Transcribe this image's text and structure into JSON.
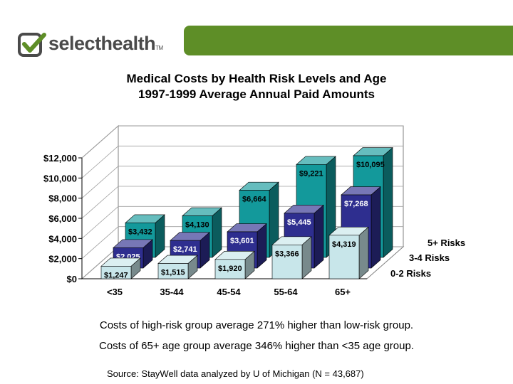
{
  "header": {
    "brand": "selecthealth",
    "trademark": "TM",
    "accent_color": "#5e8e27",
    "logo_color": "#4a4a4a"
  },
  "chart_data": {
    "type": "bar",
    "title": "Medical Costs by Health Risk Levels and Age",
    "subtitle": "1997-1999 Average Annual Paid Amounts",
    "categories": [
      "<35",
      "35-44",
      "45-54",
      "55-64",
      "65+"
    ],
    "series": [
      {
        "name": "0-2 Risks",
        "values": [
          1247,
          1515,
          1920,
          3366,
          4319
        ],
        "labels": [
          "$1,247",
          "$1,515",
          "$1,920",
          "$3,366",
          "$4,319"
        ],
        "color": "#c8e6ea"
      },
      {
        "name": "3-4 Risks",
        "values": [
          2025,
          2741,
          3601,
          5445,
          7268
        ],
        "labels": [
          "$2,025",
          "$2,741",
          "$3,601",
          "$5,445",
          "$7,268"
        ],
        "color": "#2e2e8f"
      },
      {
        "name": "5+ Risks",
        "values": [
          3432,
          4130,
          6664,
          9221,
          10095
        ],
        "labels": [
          "$3,432",
          "$4,130",
          "$6,664",
          "$9,221",
          "$10,095"
        ],
        "color": "#13999b"
      }
    ],
    "ylim": [
      0,
      12000
    ],
    "yticks": [
      0,
      2000,
      4000,
      6000,
      8000,
      10000,
      12000
    ],
    "ytick_labels": [
      "$0",
      "$2,000",
      "$4,000",
      "$6,000",
      "$8,000",
      "$10,000",
      "$12,000"
    ],
    "xlabel": "",
    "ylabel": "",
    "grid": true,
    "legend": "right, depth labels"
  },
  "notes": {
    "line1": "Costs of high-risk group average 271% higher than low-risk group.",
    "line2": "Costs of 65+ age group average 346% higher than <35 age group."
  },
  "source": "Source: StayWell data analyzed by U of Michigan (N = 43,687)"
}
